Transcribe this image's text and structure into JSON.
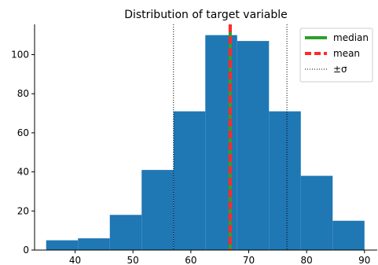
{
  "chart_data": {
    "type": "bar",
    "title": "Distribution of target variable",
    "xlabel": "",
    "ylabel": "",
    "xlim": [
      33.0,
      92.2
    ],
    "ylim": [
      0,
      115.5
    ],
    "bins": [
      {
        "x0": 35.0,
        "x1": 40.5,
        "count": 5
      },
      {
        "x0": 40.5,
        "x1": 46.0,
        "count": 6
      },
      {
        "x0": 46.0,
        "x1": 51.5,
        "count": 18
      },
      {
        "x0": 51.5,
        "x1": 57.0,
        "count": 41
      },
      {
        "x0": 57.0,
        "x1": 62.5,
        "count": 71
      },
      {
        "x0": 62.5,
        "x1": 68.0,
        "count": 110
      },
      {
        "x0": 68.0,
        "x1": 73.5,
        "count": 107
      },
      {
        "x0": 73.5,
        "x1": 79.0,
        "count": 71
      },
      {
        "x0": 79.0,
        "x1": 84.5,
        "count": 38
      },
      {
        "x0": 84.5,
        "x1": 90.0,
        "count": 15
      }
    ],
    "xticks": [
      40,
      50,
      60,
      70,
      80,
      90
    ],
    "yticks": [
      0,
      20,
      40,
      60,
      80,
      100
    ],
    "median": 66.8,
    "mean": 66.8,
    "sigma_lines": [
      57.0,
      76.6
    ],
    "legend": {
      "placement": "top-right",
      "entries": [
        {
          "key": "median",
          "label": "median"
        },
        {
          "key": "mean",
          "label": "mean"
        },
        {
          "key": "sigma",
          "label": "±σ"
        }
      ]
    },
    "colors": {
      "bar": "#1f77b4",
      "median": "#2ca02c",
      "mean": "#ff2a2a",
      "sigma": "#000000"
    },
    "grid": false
  }
}
